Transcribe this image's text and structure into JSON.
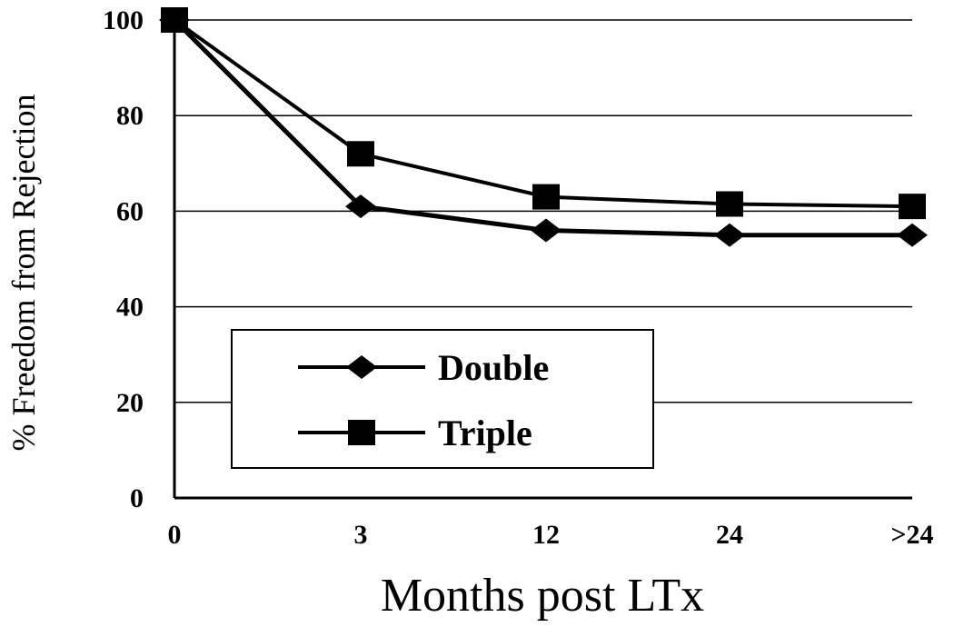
{
  "chart_data": {
    "type": "line",
    "categories": [
      "0",
      "3",
      "12",
      "24",
      ">24"
    ],
    "series": [
      {
        "name": "Double",
        "marker": "diamond",
        "values": [
          100,
          61,
          56,
          55,
          55
        ]
      },
      {
        "name": "Triple",
        "marker": "square",
        "values": [
          100,
          72,
          63,
          61.5,
          61
        ]
      }
    ],
    "xlabel": "Months post LTx",
    "ylabel": "% Freedom from Rejection",
    "yticks": [
      "0",
      "20",
      "40",
      "60",
      "80",
      "100"
    ],
    "ylim": [
      0,
      100
    ],
    "grid": "horizontal",
    "legend_position": "lower-left",
    "colors": {
      "line": "#000000",
      "grid": "#000000",
      "background": "#ffffff"
    }
  }
}
